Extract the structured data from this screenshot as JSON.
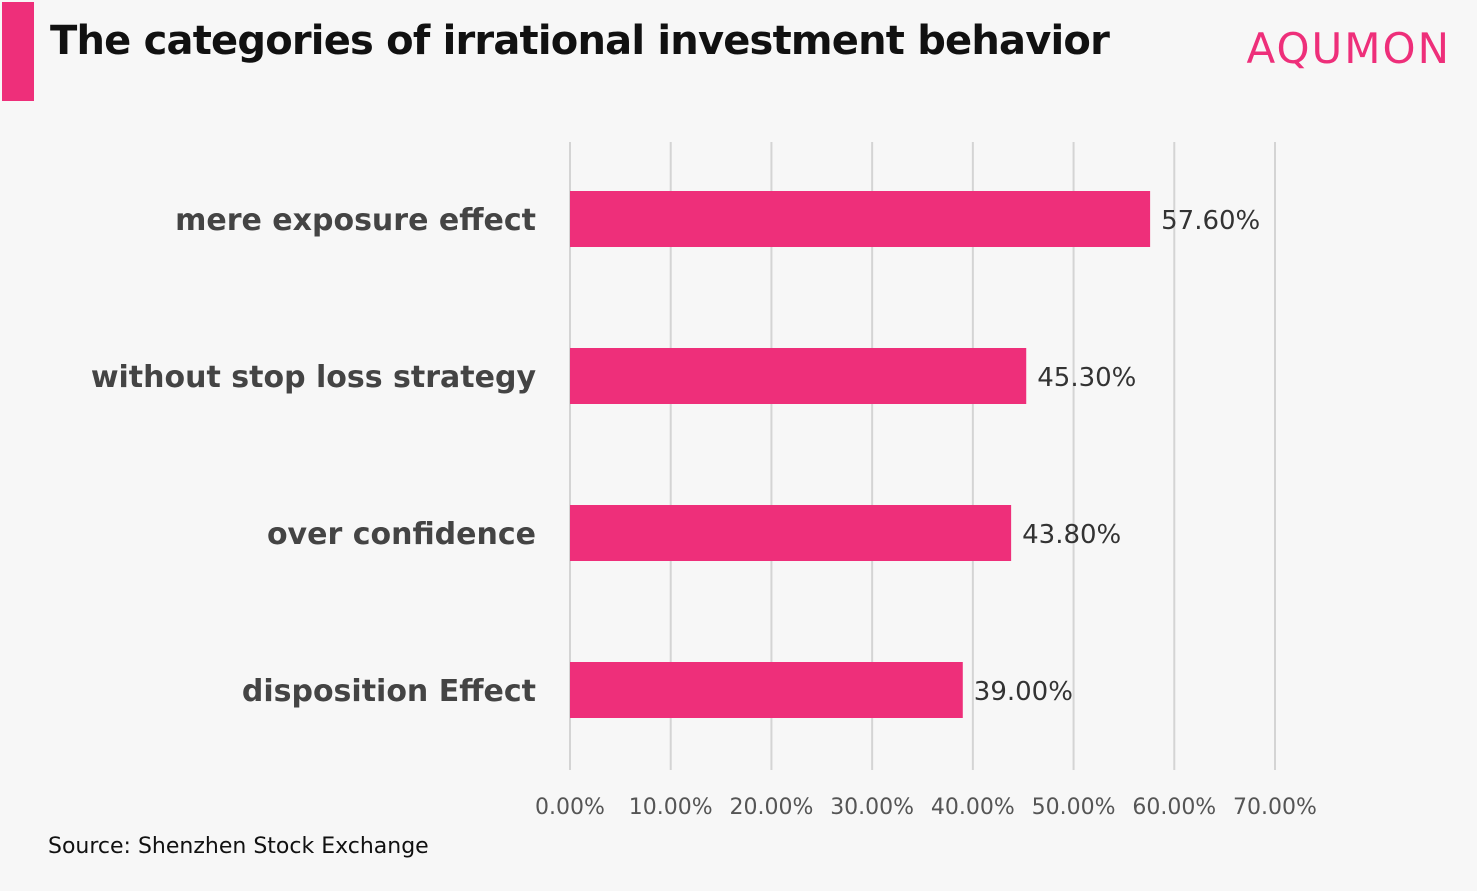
{
  "header": {
    "title": "The categories of irrational investment behavior",
    "brand": "AQUMON"
  },
  "footer": {
    "source": "Source: Shenzhen Stock Exchange"
  },
  "colors": {
    "accent": "#ee2f7a",
    "bar": "#ee2f7a",
    "grid": "#d4d4d4",
    "background": "#f7f7f7"
  },
  "chart_data": {
    "type": "bar",
    "orientation": "horizontal",
    "categories": [
      "mere exposure effect",
      "without stop loss strategy",
      "over confidence",
      "disposition Effect"
    ],
    "values": [
      57.6,
      45.3,
      43.8,
      39.0
    ],
    "value_labels": [
      "57.60%",
      "45.30%",
      "43.80%",
      "39.00%"
    ],
    "xlim": [
      0,
      70
    ],
    "xticks": [
      0,
      10,
      20,
      30,
      40,
      50,
      60,
      70
    ],
    "xtick_labels": [
      "0.00%",
      "10.00%",
      "20.00%",
      "30.00%",
      "40.00%",
      "50.00%",
      "60.00%",
      "70.00%"
    ],
    "grid": "vertical",
    "legend": "none"
  }
}
